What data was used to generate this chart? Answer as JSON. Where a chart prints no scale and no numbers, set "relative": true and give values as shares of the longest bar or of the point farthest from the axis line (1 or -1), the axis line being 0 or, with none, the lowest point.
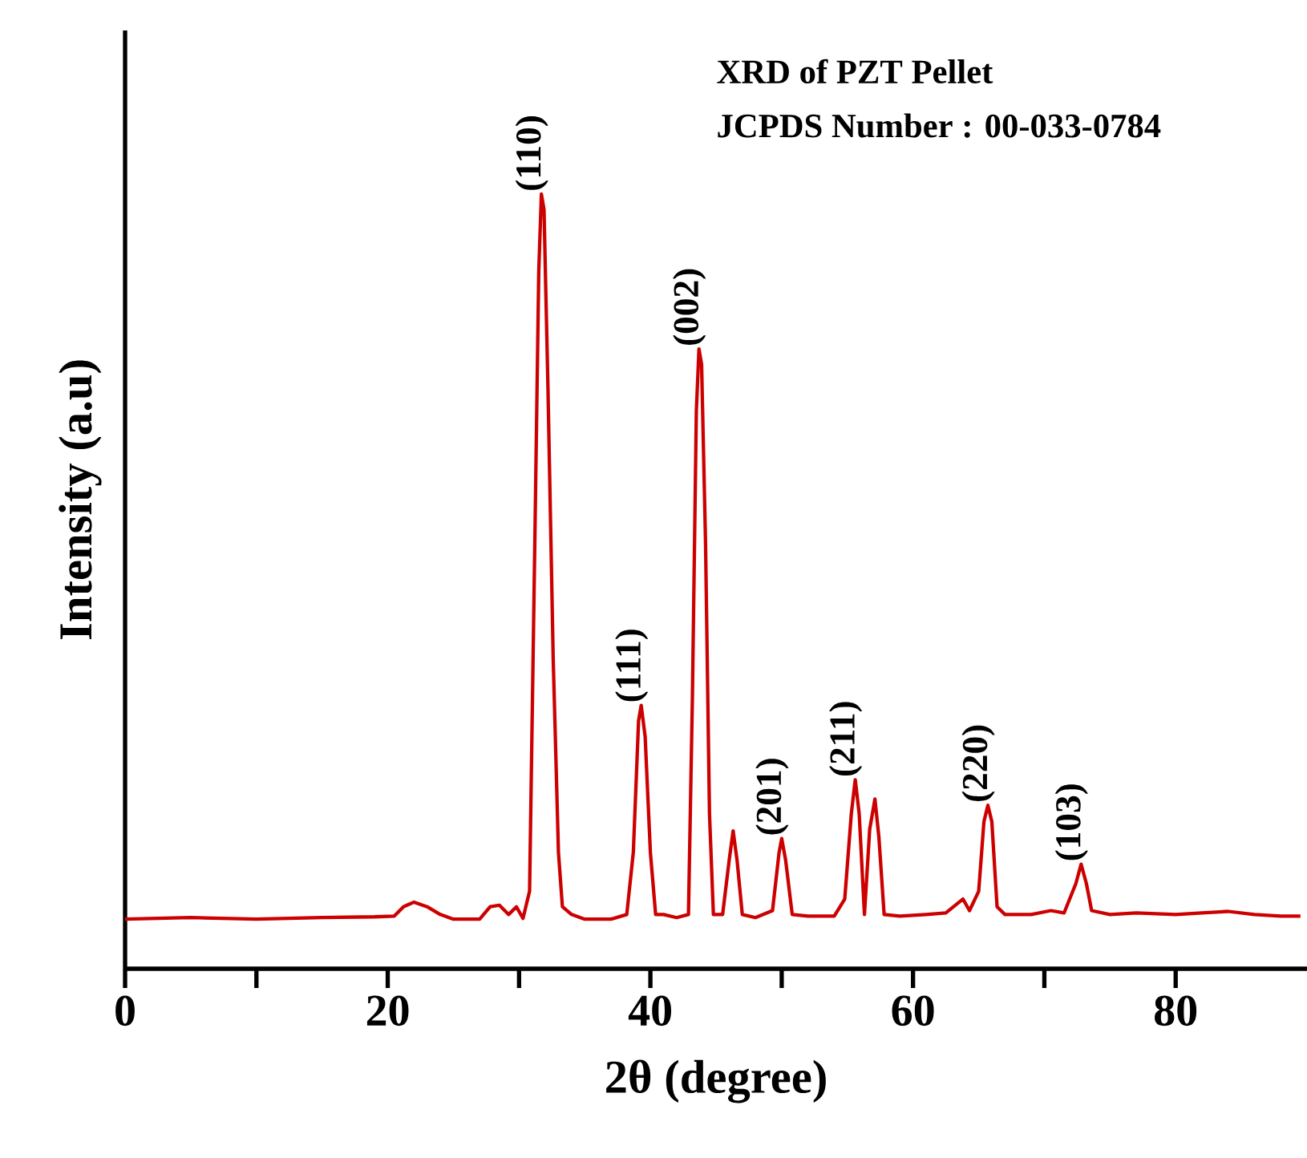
{
  "chart_data": {
    "type": "line",
    "relative": true,
    "xlabel": "2θ (degree)",
    "ylabel": "Intensity (a.u)",
    "color": "#cc0000",
    "xlim": [
      0,
      90
    ],
    "xticks": [
      0,
      {
        "value": 10,
        "label": null
      },
      20,
      {
        "value": 30,
        "label": null
      },
      40,
      {
        "value": 50,
        "label": null
      },
      60,
      {
        "value": 70,
        "label": null
      },
      80
    ],
    "grid": false,
    "marker": "none",
    "line_style": "solid",
    "annotations": [
      "XRD of PZT Pellet",
      "JCPDS Number : 00-033-0784",
      {
        "text": "(110)",
        "x": 31.7,
        "y": 1.0
      },
      {
        "text": "(111)",
        "x": 39.3,
        "y": 0.34
      },
      {
        "text": "(002)",
        "x": 43.7,
        "y": 0.8
      },
      {
        "text": "(201)",
        "x": 50.0,
        "y": 0.168
      },
      {
        "text": "(211)",
        "x": 55.6,
        "y": 0.244
      },
      {
        "text": "(220)",
        "x": 65.7,
        "y": 0.211
      },
      {
        "text": "(103)",
        "x": 72.8,
        "y": 0.135
      }
    ],
    "x": [
      0,
      5,
      10,
      15,
      19,
      20.5,
      21.2,
      22,
      23,
      24,
      25,
      27,
      27.8,
      28.5,
      29.2,
      29.8,
      30.3,
      30.8,
      31.2,
      31.5,
      31.7,
      31.9,
      32.2,
      32.6,
      33.0,
      33.3,
      34,
      35,
      37,
      38.2,
      38.7,
      39.1,
      39.3,
      39.6,
      40.0,
      40.4,
      41,
      42,
      42.9,
      43.2,
      43.5,
      43.7,
      43.9,
      44.2,
      44.5,
      44.8,
      45.5,
      46.0,
      46.3,
      46.6,
      47.0,
      48,
      49.3,
      49.8,
      50.0,
      50.3,
      50.8,
      52,
      54,
      54.8,
      55.3,
      55.6,
      55.9,
      56.3,
      56.7,
      57.1,
      57.4,
      57.8,
      59,
      61,
      62.5,
      63.8,
      64.3,
      65.0,
      65.4,
      65.7,
      66.0,
      66.4,
      67,
      69,
      70.5,
      71.5,
      72.4,
      72.8,
      73.2,
      73.6,
      75,
      77,
      80,
      82,
      84,
      86,
      88,
      89.5
    ],
    "values": [
      0.064,
      0.066,
      0.064,
      0.066,
      0.067,
      0.068,
      0.08,
      0.086,
      0.08,
      0.07,
      0.064,
      0.064,
      0.08,
      0.082,
      0.07,
      0.08,
      0.065,
      0.1,
      0.55,
      0.9,
      1.0,
      0.98,
      0.75,
      0.4,
      0.15,
      0.08,
      0.07,
      0.064,
      0.064,
      0.07,
      0.15,
      0.32,
      0.34,
      0.3,
      0.15,
      0.07,
      0.07,
      0.066,
      0.07,
      0.35,
      0.72,
      0.8,
      0.78,
      0.55,
      0.2,
      0.07,
      0.07,
      0.14,
      0.178,
      0.14,
      0.07,
      0.066,
      0.075,
      0.15,
      0.168,
      0.14,
      0.07,
      0.068,
      0.068,
      0.09,
      0.2,
      0.244,
      0.2,
      0.07,
      0.18,
      0.219,
      0.17,
      0.07,
      0.068,
      0.07,
      0.072,
      0.09,
      0.075,
      0.1,
      0.19,
      0.211,
      0.19,
      0.08,
      0.07,
      0.07,
      0.075,
      0.072,
      0.11,
      0.135,
      0.11,
      0.075,
      0.07,
      0.072,
      0.07,
      0.072,
      0.074,
      0.07,
      0.068,
      0.068
    ]
  }
}
